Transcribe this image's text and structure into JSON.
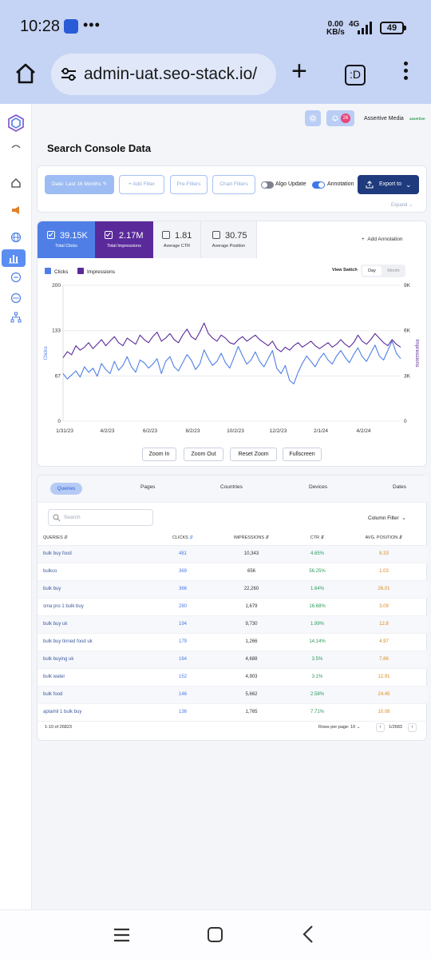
{
  "status_bar": {
    "time": "10:28",
    "more": "•••",
    "speed_value": "0.00",
    "speed_unit": "KB/s",
    "network": "4G",
    "battery": "49"
  },
  "browser": {
    "url": "admin-uat.seo-stack.io/",
    "tab_icon_label": ":D"
  },
  "header": {
    "notification_count": "26",
    "user_name": "Assertive Media",
    "brand": "assertive"
  },
  "page": {
    "title": "Search Console Data"
  },
  "filters": {
    "date": "Date: Last 16 Months",
    "add_filter": "Add Filter",
    "pre_filters": "Pre-Filters",
    "chart_filters": "Chart Filters",
    "algo_update": "Algo Update",
    "annotation": "Annotation",
    "export": "Export to",
    "expand": "Expand"
  },
  "metrics": {
    "clicks": {
      "value": "39.15K",
      "label": "Total Clicks"
    },
    "impressions": {
      "value": "2.17M",
      "label": "Total Impressions"
    },
    "ctr": {
      "value": "1.81",
      "label": "Average CTR"
    },
    "position": {
      "value": "30.75",
      "label": "Average Position"
    },
    "add_annotation": "Add Annotation"
  },
  "view_switch": {
    "label": "View Switch",
    "day": "Day",
    "month": "Month"
  },
  "chart_data": {
    "type": "line",
    "x_tick_labels": [
      "1/31/23",
      "4/2/23",
      "6/2/23",
      "8/2/23",
      "10/2/23",
      "12/2/23",
      "2/1/24",
      "4/2/24"
    ],
    "y_left": {
      "label": "Clicks",
      "ticks": [
        "0",
        "67",
        "133",
        "200"
      ],
      "range": [
        0,
        200
      ]
    },
    "y_right": {
      "label": "Impressions",
      "ticks": [
        "0",
        "3K",
        "6K",
        "9K"
      ],
      "range": [
        0,
        9000
      ]
    },
    "series": [
      {
        "name": "Clicks",
        "color": "#4f7fe6",
        "values": [
          70,
          62,
          68,
          74,
          65,
          80,
          72,
          78,
          66,
          85,
          76,
          70,
          88,
          75,
          82,
          95,
          80,
          72,
          90,
          86,
          78,
          84,
          92,
          70,
          88,
          95,
          80,
          74,
          86,
          98,
          90,
          76,
          84,
          105,
          92,
          82,
          88,
          100,
          86,
          78,
          94,
          110,
          96,
          84,
          90,
          102,
          88,
          80,
          92,
          104,
          78,
          70,
          82,
          60,
          55,
          72,
          85,
          96,
          88,
          80,
          92,
          100,
          90,
          84,
          96,
          104,
          94,
          86,
          98,
          108,
          95,
          88,
          100,
          112,
          96,
          90,
          104,
          118,
          100,
          92
        ]
      },
      {
        "name": "Impressions",
        "color": "#5b2a9a",
        "values": [
          4200,
          4600,
          4400,
          5000,
          4700,
          4900,
          5200,
          4800,
          5100,
          5400,
          5000,
          5300,
          5600,
          5200,
          5000,
          5500,
          5300,
          5100,
          5700,
          5400,
          5200,
          5600,
          5900,
          5300,
          5500,
          5800,
          5400,
          5200,
          5700,
          6100,
          5600,
          5400,
          5900,
          6500,
          5800,
          5500,
          5300,
          5700,
          5500,
          5200,
          5100,
          5400,
          5600,
          5300,
          5500,
          5700,
          5400,
          5200,
          5000,
          5300,
          4800,
          4600,
          4900,
          4700,
          5000,
          5200,
          4900,
          5100,
          5300,
          5000,
          4800,
          5000,
          5200,
          4900,
          5100,
          5400,
          5100,
          4900,
          5200,
          5700,
          5300,
          5100,
          5400,
          5800,
          5500,
          5200,
          5000,
          5400,
          5100,
          4900
        ]
      }
    ]
  },
  "zoom": {
    "in": "Zoom In",
    "out": "Zoom Out",
    "reset": "Reset Zoom",
    "fullscreen": "Fullscreen"
  },
  "table": {
    "tabs": [
      "Queries",
      "Pages",
      "Countries",
      "Devices",
      "Dates"
    ],
    "search_placeholder": "Search",
    "column_filter": "Column Filter",
    "headers": [
      "QUERIES",
      "CLICKS",
      "IMPRESSIONS",
      "CTR",
      "AVG. POSITION"
    ],
    "rows": [
      [
        "bulk buy food",
        "481",
        "10,343",
        "4.65%",
        "8.33"
      ],
      [
        "bulkco",
        "369",
        "656",
        "56.25%",
        "1.03"
      ],
      [
        "bulk buy",
        "366",
        "22,260",
        "1.64%",
        "26.01"
      ],
      [
        "sma pro 1 bulk buy",
        "280",
        "1,679",
        "16.68%",
        "3.09"
      ],
      [
        "bulk buy uk",
        "194",
        "9,730",
        "1.99%",
        "12.8"
      ],
      [
        "bulk buy tinned food uk",
        "179",
        "1,266",
        "14.14%",
        "4.97"
      ],
      [
        "bulk buying uk",
        "164",
        "4,688",
        "3.5%",
        "7.86"
      ],
      [
        "bulk water",
        "152",
        "4,903",
        "3.1%",
        "12.91"
      ],
      [
        "bulk food",
        "146",
        "5,662",
        "2.58%",
        "24.45"
      ],
      [
        "aptamil 1 bulk buy",
        "136",
        "1,765",
        "7.71%",
        "10.08"
      ]
    ],
    "footer_range": "1-10 of 26823",
    "rows_per_page": "Rows per page: 10",
    "page": "1/2683"
  }
}
